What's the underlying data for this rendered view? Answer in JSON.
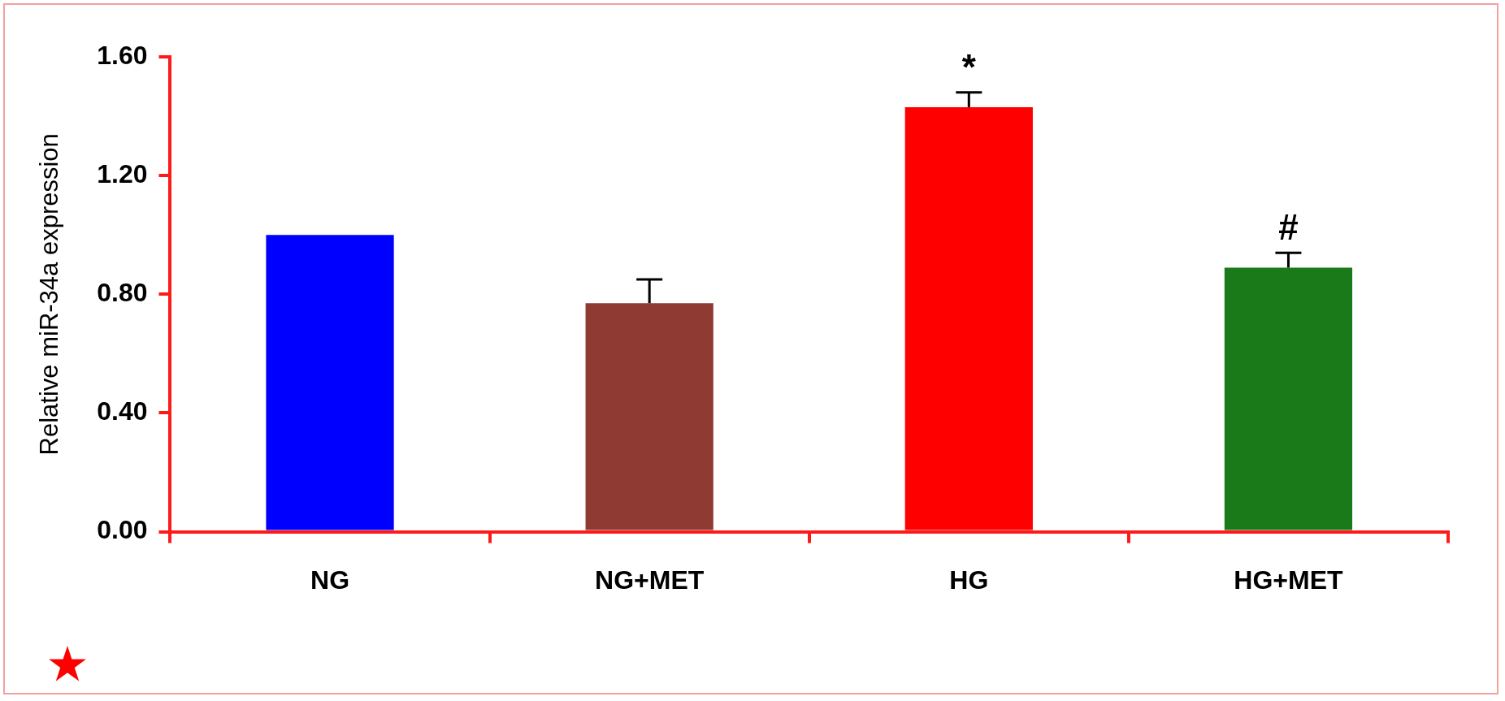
{
  "chart_data": {
    "type": "bar",
    "ylabel": "Relative miR-34a expression",
    "categories": [
      "NG",
      "NG+MET",
      "HG",
      "HG+MET"
    ],
    "values": [
      1.0,
      0.77,
      1.43,
      0.89
    ],
    "colors": [
      "#0000ff",
      "#903a34",
      "#ff0000",
      "#1a7a1a"
    ],
    "errors": [
      null,
      0.08,
      0.05,
      0.05
    ],
    "ylim": [
      0,
      1.6
    ],
    "yticks": [
      {
        "value": 0,
        "label": "0.00"
      },
      {
        "value": 0.4,
        "label": "0.40"
      },
      {
        "value": 0.8,
        "label": "0.80"
      },
      {
        "value": 1.2,
        "label": "1.20"
      },
      {
        "value": 1.6,
        "label": "1.60"
      }
    ],
    "annotations": [
      {
        "text": "*",
        "x": "HG",
        "y": 1.48
      },
      {
        "text": "#",
        "x": "HG+MET",
        "y": 0.94
      }
    ],
    "grid": false,
    "legend": false
  }
}
